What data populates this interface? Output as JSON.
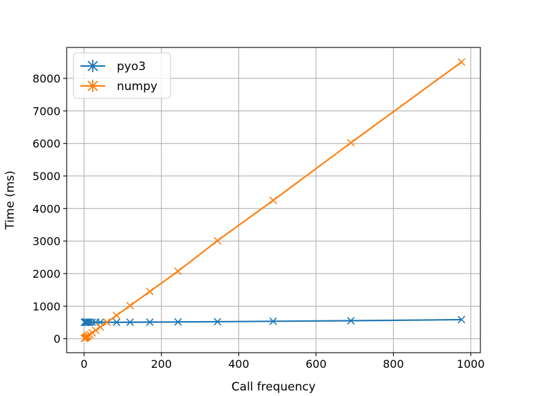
{
  "chart_data": {
    "type": "line",
    "xlabel": "Call frequency",
    "ylabel": "Time (ms)",
    "xlim": [
      -45,
      1025
    ],
    "ylim": [
      -430,
      8950
    ],
    "xticks": [
      0,
      200,
      400,
      600,
      800,
      1000
    ],
    "yticks": [
      0,
      1000,
      2000,
      3000,
      4000,
      5000,
      6000,
      7000,
      8000
    ],
    "xtick_labels": [
      "0",
      "200",
      "400",
      "600",
      "800",
      "1000"
    ],
    "ytick_labels": [
      "0",
      "1000",
      "2000",
      "3000",
      "4000",
      "5000",
      "6000",
      "7000",
      "8000"
    ],
    "grid": true,
    "legend_position": "top-left",
    "series": [
      {
        "name": "pyo3",
        "color": "#1f77b4",
        "marker": "x",
        "x": [
          1,
          2,
          3,
          4,
          6,
          8,
          11,
          15,
          21,
          30,
          42,
          59,
          84,
          119,
          170,
          243,
          345,
          489,
          690,
          976
        ],
        "y": [
          505,
          505,
          505,
          505,
          505,
          505,
          505,
          505,
          505,
          505,
          505,
          505,
          505,
          505,
          510,
          515,
          522,
          535,
          552,
          585
        ]
      },
      {
        "name": "numpy",
        "color": "#ff7f0e",
        "marker": "x",
        "x": [
          1,
          2,
          3,
          4,
          6,
          8,
          11,
          15,
          21,
          30,
          42,
          59,
          84,
          119,
          170,
          243,
          345,
          489,
          690,
          976
        ],
        "y": [
          8,
          17,
          26,
          34,
          52,
          69,
          95,
          128,
          180,
          257,
          358,
          503,
          716,
          1015,
          1450,
          2074,
          3010,
          4250,
          6020,
          8500
        ]
      }
    ]
  }
}
